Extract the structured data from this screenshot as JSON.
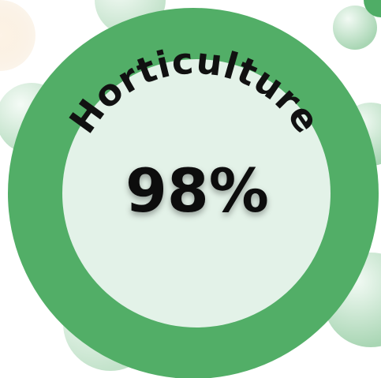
{
  "badge": {
    "title": "Horticulture",
    "value": "98%"
  }
}
